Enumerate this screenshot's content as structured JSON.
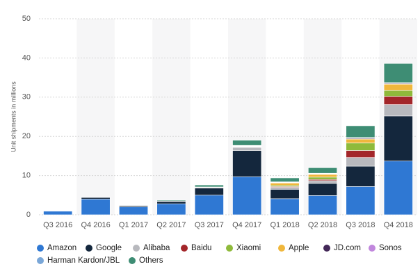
{
  "chart_data": {
    "type": "stacked-bar",
    "y_label": "Unit shipments in millions",
    "categories": [
      "Q3 2016",
      "Q4 2016",
      "Q1 2017",
      "Q2 2017",
      "Q3 2017",
      "Q4 2017",
      "Q1 2018",
      "Q2 2018",
      "Q3 2018",
      "Q4 2018"
    ],
    "series": [
      {
        "name": "Amazon",
        "color": "#2f78d3",
        "values": [
          0.9,
          4.0,
          2.0,
          2.8,
          5.0,
          9.7,
          4.1,
          4.9,
          7.2,
          13.7
        ]
      },
      {
        "name": "Google",
        "color": "#14273d",
        "values": [
          0,
          0.4,
          0.3,
          0.6,
          1.8,
          6.7,
          2.4,
          3.1,
          5.2,
          11.5
        ]
      },
      {
        "name": "Alibaba",
        "color": "#b8b9be",
        "values": [
          0,
          0,
          0,
          0.1,
          0.2,
          0.8,
          0.5,
          0.7,
          2.2,
          2.9
        ]
      },
      {
        "name": "Baidu",
        "color": "#a3262a",
        "values": [
          0,
          0,
          0,
          0,
          0,
          0.1,
          0.2,
          0.3,
          1.8,
          2.1
        ]
      },
      {
        "name": "Xiaomi",
        "color": "#8fba3b",
        "values": [
          0,
          0,
          0,
          0,
          0.1,
          0.1,
          0.3,
          0.6,
          1.9,
          1.5
        ]
      },
      {
        "name": "Apple",
        "color": "#f0b73c",
        "values": [
          0,
          0,
          0,
          0,
          0,
          0,
          0.6,
          0.7,
          1.0,
          1.6
        ]
      },
      {
        "name": "JD.com",
        "color": "#432858",
        "values": [
          0,
          0,
          0,
          0,
          0,
          0.1,
          0.1,
          0.1,
          0.2,
          0.2
        ]
      },
      {
        "name": "Sonos",
        "color": "#c187dd",
        "values": [
          0,
          0,
          0,
          0,
          0,
          0.1,
          0.1,
          0.1,
          0.1,
          0.1
        ]
      },
      {
        "name": "Harman Kardon/JBL",
        "color": "#7aa7d8",
        "values": [
          0,
          0,
          0,
          0,
          0,
          0.1,
          0.1,
          0.1,
          0.1,
          0.1
        ]
      },
      {
        "name": "Others",
        "color": "#3e8d74",
        "values": [
          0,
          0.1,
          0.1,
          0.2,
          0.5,
          1.3,
          1.0,
          1.4,
          3.0,
          4.9
        ]
      }
    ],
    "ylim": [
      0,
      50
    ],
    "yticks": [
      0,
      10,
      20,
      30,
      40,
      50
    ],
    "grid": true
  }
}
